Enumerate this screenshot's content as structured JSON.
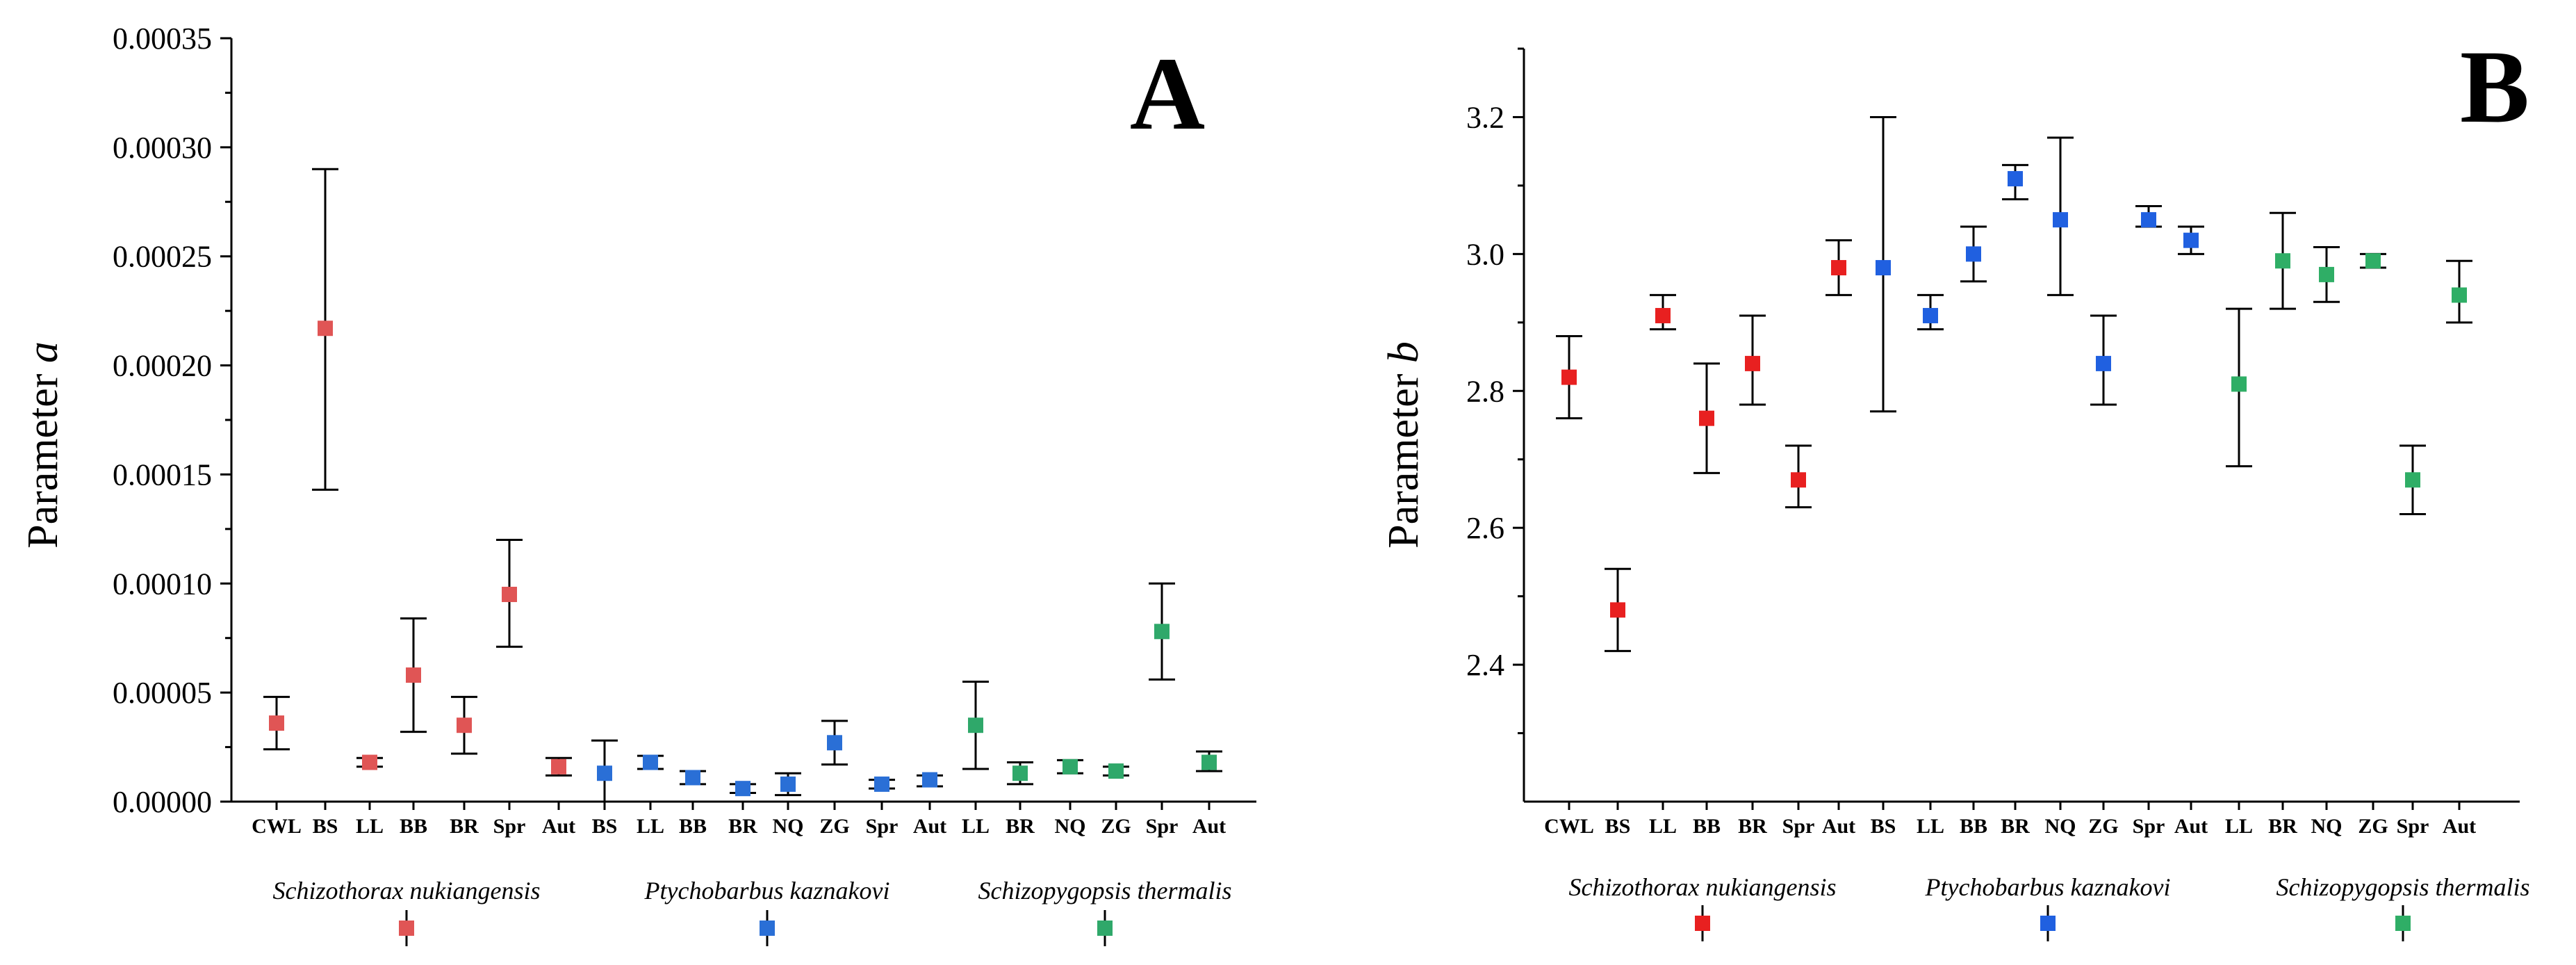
{
  "chart_data": [
    {
      "type": "scatter",
      "panel_label": "A",
      "ylabel_main": "Parameter ",
      "ylabel_italic": "a",
      "xlabel": "",
      "ylim": [
        0,
        0.00035
      ],
      "yticks": [
        "0.00000",
        "0.00005",
        "0.00010",
        "0.00015",
        "0.00020",
        "0.00025",
        "0.00030",
        "0.00035"
      ],
      "categories": [
        "CWL",
        "BS",
        "LL",
        "BB",
        "BR",
        "Spr",
        "Aut",
        "BS",
        "LL",
        "BB",
        "BR",
        "NQ",
        "ZG",
        "Spr",
        "Aut",
        "LL",
        "BR",
        "NQ",
        "ZG",
        "Spr",
        "Aut"
      ],
      "series": [
        {
          "name": "Schizothorax nukiangensis",
          "color": "#e05555",
          "points": [
            {
              "x": "CWL",
              "y": 3.6e-05,
              "low": 2.4e-05,
              "high": 4.8e-05
            },
            {
              "x": "BS",
              "y": 0.000217,
              "low": 0.000143,
              "high": 0.00029
            },
            {
              "x": "LL",
              "y": 1.8e-05,
              "low": 1.6e-05,
              "high": 2e-05
            },
            {
              "x": "BB",
              "y": 5.8e-05,
              "low": 3.2e-05,
              "high": 8.4e-05
            },
            {
              "x": "BR",
              "y": 3.5e-05,
              "low": 2.2e-05,
              "high": 4.8e-05
            },
            {
              "x": "Spr",
              "y": 9.5e-05,
              "low": 7.1e-05,
              "high": 0.00012
            },
            {
              "x": "Aut",
              "y": 1.6e-05,
              "low": 1.2e-05,
              "high": 2e-05
            }
          ]
        },
        {
          "name": "Ptychobarbus kaznakovi",
          "color": "#2a6fd6",
          "points": [
            {
              "x": "BS",
              "y": 1.3e-05,
              "low": 0.0,
              "high": 2.8e-05
            },
            {
              "x": "LL",
              "y": 1.8e-05,
              "low": 1.5e-05,
              "high": 2.1e-05
            },
            {
              "x": "BB",
              "y": 1.1e-05,
              "low": 8e-06,
              "high": 1.4e-05
            },
            {
              "x": "BR",
              "y": 6e-06,
              "low": 4e-06,
              "high": 8e-06
            },
            {
              "x": "NQ",
              "y": 8e-06,
              "low": 3e-06,
              "high": 1.3e-05
            },
            {
              "x": "ZG",
              "y": 2.7e-05,
              "low": 1.7e-05,
              "high": 3.7e-05
            },
            {
              "x": "Spr",
              "y": 8e-06,
              "low": 6e-06,
              "high": 1e-05
            },
            {
              "x": "Aut",
              "y": 1e-05,
              "low": 7e-06,
              "high": 1.2e-05
            }
          ]
        },
        {
          "name": "Schizopygopsis thermalis",
          "color": "#2fa86a",
          "points": [
            {
              "x": "LL",
              "y": 3.5e-05,
              "low": 1.5e-05,
              "high": 5.5e-05
            },
            {
              "x": "BR",
              "y": 1.3e-05,
              "low": 8e-06,
              "high": 1.8e-05
            },
            {
              "x": "NQ",
              "y": 1.6e-05,
              "low": 1.3e-05,
              "high": 1.9e-05
            },
            {
              "x": "ZG",
              "y": 1.4e-05,
              "low": 1.2e-05,
              "high": 1.6e-05
            },
            {
              "x": "Spr",
              "y": 7.8e-05,
              "low": 5.6e-05,
              "high": 0.0001
            },
            {
              "x": "Aut",
              "y": 1.8e-05,
              "low": 1.4e-05,
              "high": 2.3e-05
            }
          ]
        }
      ]
    },
    {
      "type": "scatter",
      "panel_label": "B",
      "ylabel_main": "Parameter ",
      "ylabel_italic": "b",
      "xlabel": "",
      "ylim": [
        2.2,
        3.3
      ],
      "yticks": [
        "2.4",
        "2.6",
        "2.8",
        "3.0",
        "3.2"
      ],
      "categories": [
        "CWL",
        "BS",
        "LL",
        "BB",
        "BR",
        "Spr",
        "Aut",
        "BS",
        "LL",
        "BB",
        "BR",
        "NQ",
        "ZG",
        "Spr",
        "Aut",
        "LL",
        "BR",
        "NQ",
        "ZG",
        "Spr",
        "Aut"
      ],
      "series": [
        {
          "name": "Schizothorax nukiangensis",
          "color": "#e82020",
          "points": [
            {
              "x": "CWL",
              "y": 2.82,
              "low": 2.76,
              "high": 2.88
            },
            {
              "x": "BS",
              "y": 2.48,
              "low": 2.42,
              "high": 2.54
            },
            {
              "x": "LL",
              "y": 2.91,
              "low": 2.89,
              "high": 2.94
            },
            {
              "x": "BB",
              "y": 2.76,
              "low": 2.68,
              "high": 2.84
            },
            {
              "x": "BR",
              "y": 2.84,
              "low": 2.78,
              "high": 2.91
            },
            {
              "x": "Spr",
              "y": 2.67,
              "low": 2.63,
              "high": 2.72
            },
            {
              "x": "Aut",
              "y": 2.98,
              "low": 2.94,
              "high": 3.02
            }
          ]
        },
        {
          "name": "Ptychobarbus kaznakovi",
          "color": "#2060e0",
          "points": [
            {
              "x": "BS",
              "y": 2.98,
              "low": 2.77,
              "high": 3.2
            },
            {
              "x": "LL",
              "y": 2.91,
              "low": 2.89,
              "high": 2.94
            },
            {
              "x": "BB",
              "y": 3.0,
              "low": 2.96,
              "high": 3.04
            },
            {
              "x": "BR",
              "y": 3.11,
              "low": 3.08,
              "high": 3.13
            },
            {
              "x": "NQ",
              "y": 3.05,
              "low": 2.94,
              "high": 3.17
            },
            {
              "x": "ZG",
              "y": 2.84,
              "low": 2.78,
              "high": 2.91
            },
            {
              "x": "Spr",
              "y": 3.05,
              "low": 3.04,
              "high": 3.07
            },
            {
              "x": "Aut",
              "y": 3.02,
              "low": 3.0,
              "high": 3.04
            }
          ]
        },
        {
          "name": "Schizopygopsis thermalis",
          "color": "#2fae66",
          "points": [
            {
              "x": "LL",
              "y": 2.81,
              "low": 2.69,
              "high": 2.92
            },
            {
              "x": "BR",
              "y": 2.99,
              "low": 2.92,
              "high": 3.06
            },
            {
              "x": "NQ",
              "y": 2.97,
              "low": 2.93,
              "high": 3.01
            },
            {
              "x": "ZG",
              "y": 2.99,
              "low": 2.98,
              "high": 3.0
            },
            {
              "x": "Spr",
              "y": 2.67,
              "low": 2.62,
              "high": 2.72
            },
            {
              "x": "Aut",
              "y": 2.94,
              "low": 2.9,
              "high": 2.99
            }
          ]
        }
      ]
    }
  ]
}
